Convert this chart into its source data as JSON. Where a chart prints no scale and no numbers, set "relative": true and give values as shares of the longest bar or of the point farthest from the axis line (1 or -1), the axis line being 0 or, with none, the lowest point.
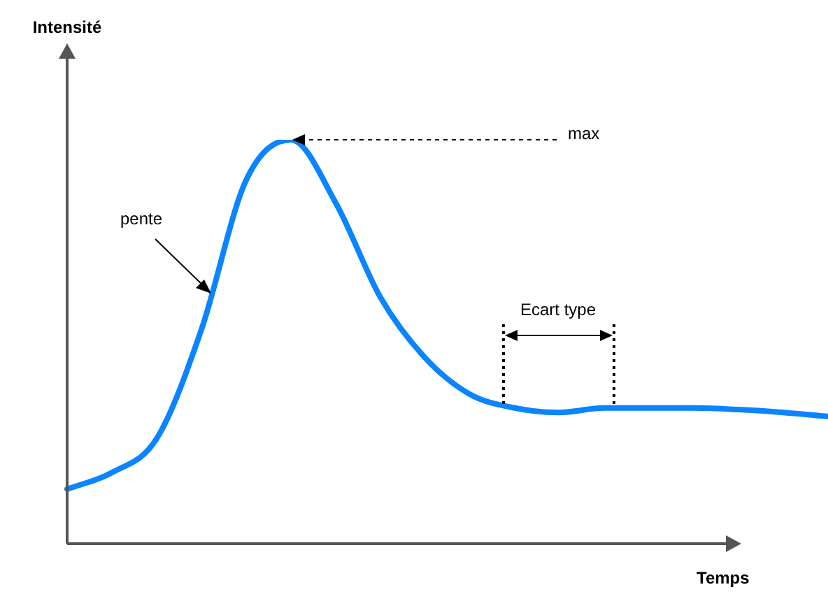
{
  "chart_data": {
    "type": "line",
    "relative": true,
    "xlabel": "Temps",
    "categories": [
      null,
      null,
      null,
      null,
      null,
      null,
      null,
      null,
      null,
      null,
      null,
      null,
      null,
      null,
      null,
      null,
      null,
      null
    ],
    "series": [
      {
        "color": "#0a84ff",
        "values": [
          0.135,
          0.176,
          0.26,
          0.53,
          0.9,
          1,
          0.844,
          0.61,
          0.46,
          0.37,
          0.336,
          0.325,
          0.336,
          0.336,
          0.336,
          0.332,
          0.325,
          0.315
        ]
      }
    ],
    "annotations": [
      "max",
      "pente",
      "Ecart type",
      "Intensité"
    ],
    "marker": "none",
    "line_style": "solid"
  }
}
